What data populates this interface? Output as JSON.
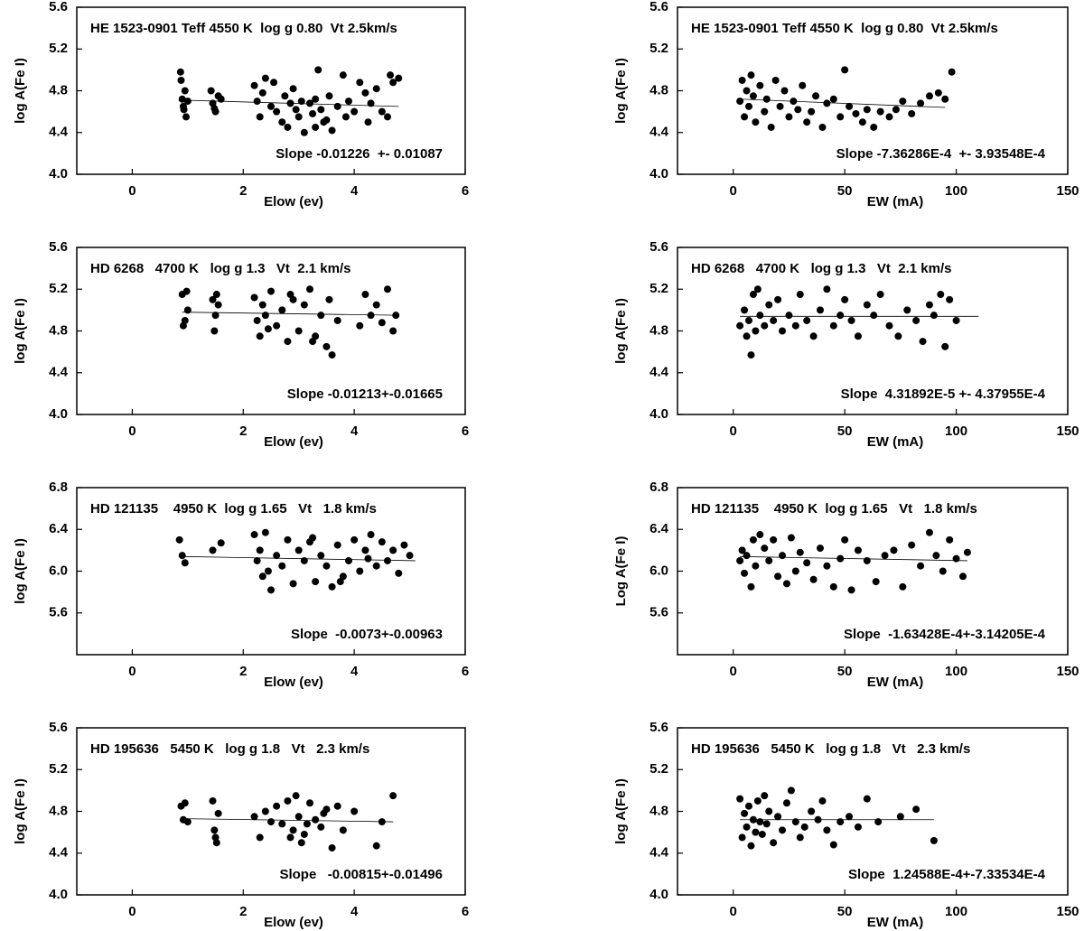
{
  "chart_data": [
    {
      "type": "scatter",
      "title": "HE 1523-0901 Teff 4550 K  log g 0.80  Vt 2.5km/s",
      "annotation": "Slope -0.01226  +- 0.01087",
      "x_label": "Elow (ev)",
      "y_label": "log A(Fe I)",
      "xlim": [
        -1,
        6
      ],
      "ylim": [
        4.0,
        5.6
      ],
      "xticks": [
        0,
        2,
        4,
        6
      ],
      "yticks": [
        {
          "value": 4,
          "label": "4.0"
        },
        4.4,
        4.8,
        5.2,
        5.6
      ],
      "color": "#000000",
      "x": [
        0.87,
        0.9,
        0.92,
        0.95,
        0.97,
        1.0,
        0.88,
        0.93,
        1.42,
        1.45,
        1.5,
        1.55,
        1.6,
        1.48,
        2.2,
        2.25,
        2.3,
        2.35,
        2.4,
        2.5,
        2.55,
        2.6,
        2.7,
        2.75,
        2.8,
        2.9,
        2.95,
        3.0,
        3.05,
        3.1,
        3.2,
        3.25,
        3.3,
        3.35,
        3.4,
        3.5,
        3.55,
        3.6,
        3.7,
        3.8,
        3.85,
        3.9,
        4.0,
        4.1,
        4.2,
        4.25,
        4.3,
        4.4,
        4.5,
        4.6,
        4.65,
        4.7,
        4.8,
        3.3,
        2.85,
        3.45
      ],
      "values": [
        4.98,
        4.72,
        4.65,
        4.8,
        4.55,
        4.7,
        4.9,
        4.62,
        4.8,
        4.68,
        4.6,
        4.75,
        4.72,
        4.63,
        4.85,
        4.7,
        4.55,
        4.78,
        4.92,
        4.65,
        4.88,
        4.6,
        4.5,
        4.75,
        4.45,
        4.82,
        4.62,
        4.55,
        4.7,
        4.4,
        4.68,
        4.58,
        4.45,
        5.0,
        4.62,
        4.52,
        4.75,
        4.42,
        4.65,
        4.95,
        4.55,
        4.7,
        4.6,
        4.88,
        4.78,
        4.5,
        4.68,
        4.82,
        4.6,
        4.55,
        4.95,
        4.88,
        4.92,
        4.72,
        4.68,
        4.5
      ],
      "fit": {
        "x": [
          0.9,
          4.8
        ],
        "y": [
          4.71,
          4.65
        ]
      }
    },
    {
      "type": "scatter",
      "title": "HE 1523-0901 Teff 4550 K  log g 0.80  Vt 2.5km/s",
      "annotation": "Slope -7.36286E-4  +- 3.93548E-4",
      "x_label": "EW (mA)",
      "y_label": "log A(Fe I)",
      "xlim": [
        -25,
        150
      ],
      "ylim": [
        4.0,
        5.6
      ],
      "xticks": [
        0,
        50,
        100,
        150
      ],
      "yticks": [
        {
          "value": 4,
          "label": "4.0"
        },
        4.4,
        4.8,
        5.2,
        5.6
      ],
      "color": "#000000",
      "x": [
        3,
        4,
        5,
        6,
        7,
        8,
        9,
        10,
        12,
        14,
        15,
        17,
        19,
        21,
        23,
        25,
        27,
        29,
        31,
        33,
        35,
        37,
        40,
        42,
        45,
        48,
        50,
        52,
        55,
        58,
        60,
        63,
        66,
        70,
        73,
        76,
        80,
        84,
        88,
        92,
        95,
        98
      ],
      "values": [
        4.7,
        4.9,
        4.55,
        4.8,
        4.65,
        4.95,
        4.75,
        4.5,
        4.85,
        4.6,
        4.72,
        4.45,
        4.9,
        4.65,
        4.8,
        4.55,
        4.7,
        4.62,
        4.85,
        4.5,
        4.6,
        4.75,
        4.45,
        4.68,
        4.72,
        4.55,
        5.0,
        4.65,
        4.58,
        4.5,
        4.62,
        4.45,
        4.6,
        4.55,
        4.62,
        4.7,
        4.58,
        4.68,
        4.75,
        4.78,
        4.72,
        4.98
      ],
      "fit": {
        "x": [
          3,
          95
        ],
        "y": [
          4.72,
          4.64
        ]
      }
    },
    {
      "type": "scatter",
      "title": "HD 6268   4700 K   log g 1.3   Vt  2.1 km/s",
      "annotation": "Slope -0.01213+-0.01665",
      "x_label": "Elow (ev)",
      "y_label": "log A(Fe I)",
      "xlim": [
        -1,
        6
      ],
      "ylim": [
        4.0,
        5.6
      ],
      "xticks": [
        0,
        2,
        4,
        6
      ],
      "yticks": [
        {
          "value": 4,
          "label": "4.0"
        },
        4.4,
        4.8,
        5.2,
        5.6
      ],
      "color": "#000000",
      "x": [
        0.9,
        0.95,
        1.0,
        0.92,
        0.98,
        1.45,
        1.5,
        1.55,
        1.48,
        1.52,
        2.2,
        2.25,
        2.3,
        2.35,
        2.4,
        2.5,
        2.6,
        2.7,
        2.8,
        2.9,
        3.0,
        3.1,
        3.2,
        3.3,
        3.4,
        3.5,
        3.55,
        3.6,
        3.7,
        4.1,
        4.2,
        4.3,
        4.4,
        4.5,
        4.6,
        4.7,
        4.75,
        2.45,
        2.85,
        3.25
      ],
      "values": [
        5.15,
        4.9,
        5.0,
        4.85,
        5.18,
        5.1,
        4.95,
        5.05,
        4.8,
        5.15,
        5.12,
        4.9,
        4.75,
        5.05,
        4.95,
        5.18,
        4.85,
        5.0,
        4.7,
        5.1,
        4.8,
        5.05,
        5.2,
        4.75,
        4.95,
        4.65,
        5.1,
        4.57,
        4.9,
        4.85,
        5.15,
        4.95,
        5.05,
        4.88,
        5.2,
        4.8,
        4.95,
        4.82,
        5.15,
        4.7
      ],
      "fit": {
        "x": [
          0.9,
          4.8
        ],
        "y": [
          4.98,
          4.95
        ]
      }
    },
    {
      "type": "scatter",
      "title": "HD 6268   4700 K   log g 1.3   Vt  2.1 km/s",
      "annotation": "Slope  4.31892E-5 +- 4.37955E-4",
      "x_label": "EW (mA)",
      "y_label": "log A(Fe I)",
      "xlim": [
        -25,
        150
      ],
      "ylim": [
        4.0,
        5.6
      ],
      "xticks": [
        0,
        50,
        100,
        150
      ],
      "yticks": [
        {
          "value": 4,
          "label": "4.0"
        },
        4.4,
        4.8,
        5.2,
        5.6
      ],
      "color": "#000000",
      "x": [
        3,
        5,
        6,
        7,
        8,
        9,
        10,
        11,
        12,
        14,
        16,
        18,
        20,
        22,
        25,
        28,
        30,
        33,
        36,
        39,
        42,
        45,
        48,
        50,
        53,
        56,
        60,
        63,
        66,
        70,
        74,
        78,
        82,
        85,
        88,
        90,
        93,
        95,
        97,
        100
      ],
      "values": [
        4.85,
        5.0,
        4.75,
        4.9,
        4.57,
        5.15,
        4.8,
        5.2,
        4.95,
        4.85,
        5.05,
        4.9,
        5.1,
        4.8,
        4.95,
        4.85,
        5.15,
        4.9,
        4.75,
        5.0,
        5.2,
        4.85,
        4.95,
        5.1,
        4.9,
        4.75,
        5.05,
        4.95,
        5.15,
        4.85,
        4.75,
        5.0,
        4.9,
        4.7,
        5.05,
        4.95,
        5.15,
        4.65,
        5.1,
        4.9
      ],
      "fit": {
        "x": [
          3,
          110
        ],
        "y": [
          4.94,
          4.94
        ]
      }
    },
    {
      "type": "scatter",
      "title": "HD 121135    4950 K  log g 1.65   Vt   1.8 km/s",
      "annotation": "Slope  -0.0073+-0.00963",
      "x_label": "Elow (ev)",
      "y_label": "log A(Fe I)",
      "xlim": [
        -1,
        6
      ],
      "ylim": [
        5.2,
        6.8
      ],
      "xticks": [
        0,
        2,
        4,
        6
      ],
      "yticks": [
        5.6,
        {
          "value": 6,
          "label": "6.0"
        },
        6.4,
        6.8
      ],
      "color": "#000000",
      "x": [
        0.85,
        0.9,
        0.95,
        1.45,
        1.6,
        2.2,
        2.25,
        2.3,
        2.35,
        2.4,
        2.5,
        2.6,
        2.7,
        2.8,
        2.9,
        3.0,
        3.1,
        3.2,
        3.3,
        3.4,
        3.5,
        3.6,
        3.7,
        3.8,
        3.9,
        4.0,
        4.1,
        4.2,
        4.3,
        4.4,
        4.5,
        4.6,
        4.7,
        4.8,
        4.9,
        5.0,
        2.45,
        3.25,
        3.75,
        4.25
      ],
      "values": [
        6.3,
        6.15,
        6.08,
        6.2,
        6.27,
        6.35,
        6.1,
        6.2,
        5.95,
        6.37,
        5.82,
        6.15,
        6.05,
        6.3,
        5.88,
        6.2,
        6.1,
        6.28,
        5.9,
        6.15,
        6.05,
        5.85,
        6.25,
        5.95,
        6.1,
        6.3,
        6.0,
        6.2,
        6.35,
        6.05,
        6.28,
        6.1,
        6.2,
        5.98,
        6.25,
        6.15,
        6.0,
        6.32,
        5.9,
        6.12
      ],
      "fit": {
        "x": [
          0.9,
          5.1
        ],
        "y": [
          6.14,
          6.1
        ]
      }
    },
    {
      "type": "scatter",
      "title": "HD 121135    4950 K  log g 1.65   Vt   1.8 km/s",
      "annotation": "Slope  -1.63428E-4+-3.14205E-4",
      "x_label": "EW (mA)",
      "y_label": "Log A(Fe I)",
      "xlim": [
        -25,
        150
      ],
      "ylim": [
        5.2,
        6.8
      ],
      "xticks": [
        0,
        50,
        100,
        150
      ],
      "yticks": [
        5.6,
        {
          "value": 6,
          "label": "6.0"
        },
        6.4,
        6.8
      ],
      "color": "#000000",
      "x": [
        3,
        4,
        5,
        6,
        8,
        9,
        10,
        12,
        14,
        16,
        18,
        20,
        22,
        24,
        26,
        28,
        30,
        33,
        36,
        39,
        42,
        45,
        48,
        50,
        53,
        56,
        60,
        64,
        68,
        72,
        76,
        80,
        84,
        88,
        91,
        94,
        97,
        100,
        103,
        105
      ],
      "values": [
        6.1,
        6.2,
        5.98,
        6.15,
        5.85,
        6.3,
        6.05,
        6.35,
        6.22,
        6.1,
        6.3,
        5.95,
        6.15,
        5.88,
        6.32,
        6.0,
        6.18,
        6.08,
        5.92,
        6.22,
        6.05,
        5.85,
        6.12,
        6.3,
        5.82,
        6.2,
        6.1,
        5.9,
        6.15,
        6.2,
        5.85,
        6.25,
        6.05,
        6.37,
        6.15,
        6.0,
        6.3,
        6.12,
        5.95,
        6.18
      ],
      "fit": {
        "x": [
          3,
          105
        ],
        "y": [
          6.14,
          6.1
        ]
      }
    },
    {
      "type": "scatter",
      "title": "HD 195636   5450 K   log g 1.8   Vt   2.3 km/s",
      "annotation": "Slope   -0.00815+-0.01496",
      "x_label": "Elow (ev)",
      "y_label": "log A(Fe I)",
      "xlim": [
        -1,
        6
      ],
      "ylim": [
        4.0,
        5.6
      ],
      "xticks": [
        0,
        2,
        4,
        6
      ],
      "yticks": [
        {
          "value": 4,
          "label": "4.0"
        },
        4.4,
        4.8,
        5.2,
        5.6
      ],
      "color": "#000000",
      "x": [
        0.88,
        0.92,
        0.95,
        1.0,
        1.45,
        1.5,
        1.55,
        1.48,
        1.52,
        2.2,
        2.3,
        2.4,
        2.5,
        2.6,
        2.7,
        2.8,
        2.9,
        2.95,
        3.0,
        3.05,
        3.1,
        3.2,
        3.3,
        3.4,
        3.5,
        3.6,
        3.7,
        3.8,
        4.0,
        4.4,
        4.5,
        4.7,
        2.85,
        3.15,
        3.45
      ],
      "values": [
        4.85,
        4.72,
        4.88,
        4.7,
        4.9,
        4.55,
        4.78,
        4.62,
        4.5,
        4.75,
        4.55,
        4.8,
        4.7,
        4.85,
        4.68,
        4.9,
        4.62,
        4.95,
        4.75,
        4.5,
        4.58,
        4.88,
        4.72,
        4.65,
        4.82,
        4.45,
        4.85,
        4.62,
        4.8,
        4.47,
        4.7,
        4.95,
        4.55,
        4.68,
        4.78
      ],
      "fit": {
        "x": [
          0.9,
          4.7
        ],
        "y": [
          4.73,
          4.7
        ]
      }
    },
    {
      "type": "scatter",
      "title": "HD 195636   5450 K   log g 1.8   Vt   2.3 km/s",
      "annotation": "Slope  1.24588E-4+-7.33534E-4",
      "x_label": "EW (mA)",
      "y_label": "log A(Fe I)",
      "xlim": [
        -25,
        150
      ],
      "ylim": [
        4.0,
        5.6
      ],
      "xticks": [
        0,
        50,
        100,
        150
      ],
      "yticks": [
        {
          "value": 4,
          "label": "4.0"
        },
        4.4,
        4.8,
        5.2,
        5.6
      ],
      "color": "#000000",
      "x": [
        3,
        4,
        5,
        6,
        7,
        8,
        9,
        10,
        11,
        12,
        13,
        14,
        15,
        16,
        18,
        20,
        22,
        24,
        26,
        28,
        30,
        32,
        35,
        38,
        40,
        42,
        45,
        48,
        52,
        56,
        60,
        65,
        75,
        82,
        90
      ],
      "values": [
        4.92,
        4.55,
        4.78,
        4.65,
        4.85,
        4.47,
        4.72,
        4.6,
        4.9,
        4.7,
        4.58,
        4.95,
        4.68,
        4.8,
        4.5,
        4.75,
        4.62,
        4.88,
        5.0,
        4.7,
        4.55,
        4.65,
        4.8,
        4.72,
        4.9,
        4.62,
        4.48,
        4.7,
        4.75,
        4.65,
        4.92,
        4.7,
        4.75,
        4.82,
        4.52
      ],
      "fit": {
        "x": [
          3,
          90
        ],
        "y": [
          4.72,
          4.72
        ]
      }
    }
  ]
}
